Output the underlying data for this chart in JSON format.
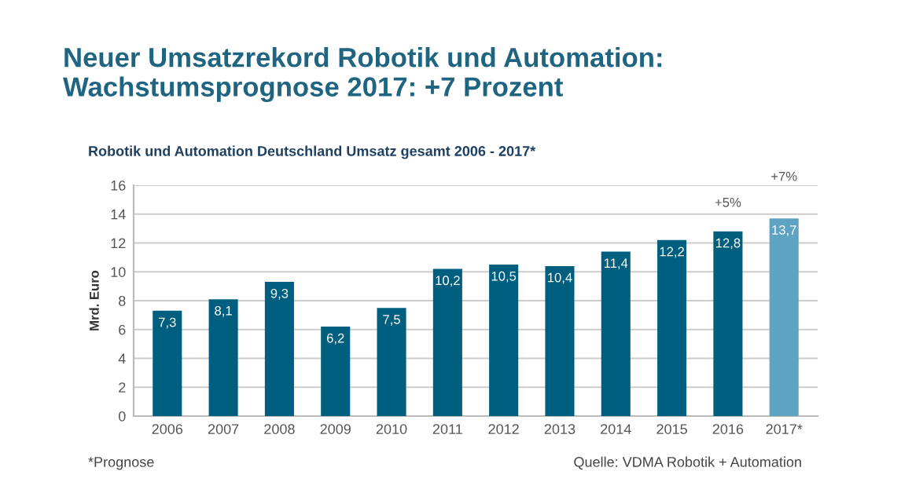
{
  "chart_data": {
    "type": "bar",
    "title": "Neuer Umsatzrekord Robotik und Automation:\nWachstumsprognose 2017: +7 Prozent",
    "subtitle": "Robotik und Automation Deutschland Umsatz gesamt 2006 - 2017*",
    "ylabel": "Mrd. Euro",
    "categories": [
      "2006",
      "2007",
      "2008",
      "2009",
      "2010",
      "2011",
      "2012",
      "2013",
      "2014",
      "2015",
      "2016",
      "2017*"
    ],
    "values": [
      7.3,
      8.1,
      9.3,
      6.2,
      7.5,
      10.2,
      10.5,
      10.4,
      11.4,
      12.2,
      12.8,
      13.7
    ],
    "colors": [
      "#005f7f",
      "#005f7f",
      "#005f7f",
      "#005f7f",
      "#005f7f",
      "#005f7f",
      "#005f7f",
      "#005f7f",
      "#005f7f",
      "#005f7f",
      "#005f7f",
      "#5fa3c2"
    ],
    "value_labels": [
      "7,3",
      "8,1",
      "9,3",
      "6,2",
      "7,5",
      "10,2",
      "10,5",
      "10,4",
      "11,4",
      "12,2",
      "12,8",
      "13,7"
    ],
    "ylim": [
      0,
      16
    ],
    "yticks": [
      0,
      2,
      4,
      6,
      8,
      10,
      12,
      14,
      16
    ],
    "grid": "y",
    "annotations": [
      "+5%",
      "+7%",
      "*Prognose",
      "Quelle: VDMA Robotik + Automation"
    ]
  }
}
